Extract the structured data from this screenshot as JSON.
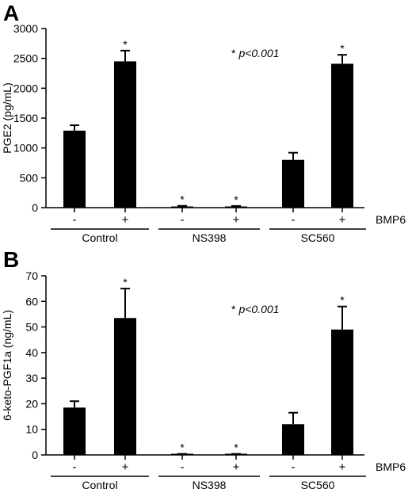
{
  "chart_data": [
    {
      "type": "bar",
      "panel_label": "A",
      "ylabel": "PGE2 (pg/mL)",
      "ylim": [
        0,
        3000
      ],
      "yticks": [
        "0",
        "500",
        "1000",
        "1500",
        "2000",
        "2500",
        "3000"
      ],
      "annotation_star": "*",
      "annotation_p": "p<0.001",
      "treatment_label": "BMP6",
      "groups": [
        "Control",
        "NS398",
        "SC560"
      ],
      "signs": [
        "-",
        "+",
        "-",
        "+",
        "-",
        "+"
      ],
      "values": [
        1290,
        2450,
        20,
        20,
        800,
        2410
      ],
      "errors": [
        90,
        180,
        10,
        8,
        120,
        150
      ],
      "significance": [
        "",
        "*",
        "*",
        "*",
        "",
        "*"
      ],
      "bar_color": "#000000",
      "grid": false
    },
    {
      "type": "bar",
      "panel_label": "B",
      "ylabel": "6-keto-PGF1a (ng/mL)",
      "ylim": [
        0,
        70
      ],
      "yticks": [
        "0",
        "10",
        "20",
        "30",
        "40",
        "50",
        "60",
        "70"
      ],
      "annotation_star": "*",
      "annotation_p": "p<0.001",
      "treatment_label": "BMP6",
      "groups": [
        "Control",
        "NS398",
        "SC560"
      ],
      "signs": [
        "-",
        "+",
        "-",
        "+",
        "-",
        "+"
      ],
      "values": [
        18.5,
        53.5,
        0.3,
        0.3,
        12,
        49
      ],
      "errors": [
        2.5,
        11.5,
        0.1,
        0.1,
        4.5,
        9
      ],
      "significance": [
        "",
        "*",
        "*",
        "*",
        "",
        "*"
      ],
      "bar_color": "#000000",
      "grid": false
    }
  ]
}
